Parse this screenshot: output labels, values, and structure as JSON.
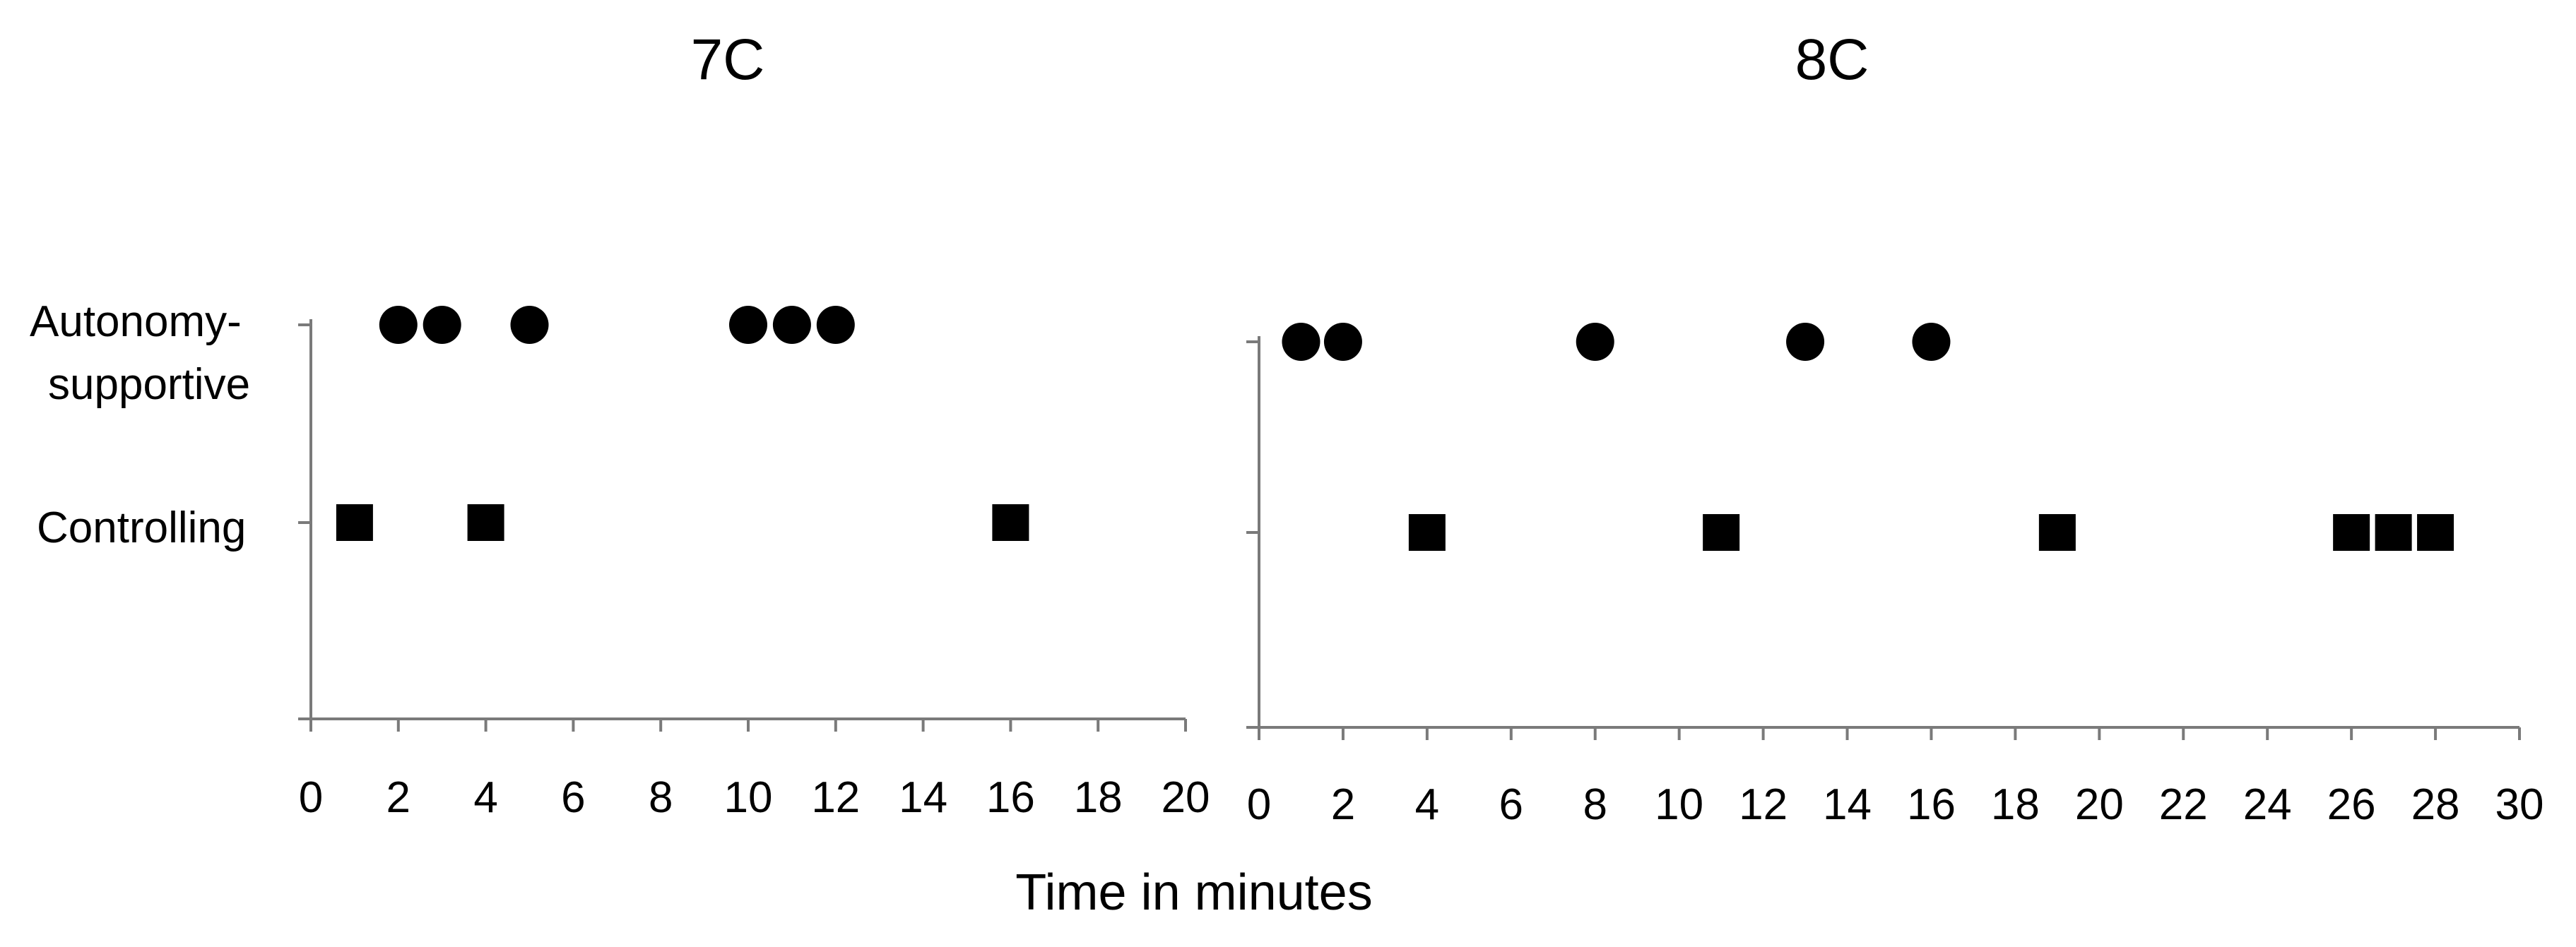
{
  "xlabel": "Time in minutes",
  "marker_color": "#000000",
  "axis_color": "#7a7a7a",
  "chart_data": [
    {
      "type": "scatter",
      "title": "7C",
      "xlabel": "Time in minutes",
      "categories": [
        "Autonomy-supportive",
        "Controlling"
      ],
      "category_labels": [
        "Autonomy-",
        "supportive",
        "Controlling"
      ],
      "xlim": [
        0,
        20
      ],
      "xticks": [
        "0",
        "2",
        "4",
        "6",
        "8",
        "10",
        "12",
        "14",
        "16",
        "18",
        "20"
      ],
      "grid": false,
      "series": [
        {
          "category": "Autonomy-supportive",
          "marker": "circle",
          "x": [
            2,
            3,
            5,
            10,
            11,
            12
          ]
        },
        {
          "category": "Controlling",
          "marker": "square",
          "x": [
            1,
            4,
            16
          ]
        }
      ]
    },
    {
      "type": "scatter",
      "title": "8C",
      "xlabel": "Time in minutes",
      "categories": [
        "Autonomy-supportive",
        "Controlling"
      ],
      "xlim": [
        0,
        30
      ],
      "xticks": [
        "0",
        "2",
        "4",
        "6",
        "8",
        "10",
        "12",
        "14",
        "16",
        "18",
        "20",
        "22",
        "24",
        "26",
        "28",
        "30"
      ],
      "grid": false,
      "series": [
        {
          "category": "Autonomy-supportive",
          "marker": "circle",
          "x": [
            1,
            2,
            8,
            13,
            16
          ]
        },
        {
          "category": "Controlling",
          "marker": "square",
          "x": [
            4,
            11,
            19,
            26,
            27,
            28
          ]
        }
      ]
    }
  ]
}
